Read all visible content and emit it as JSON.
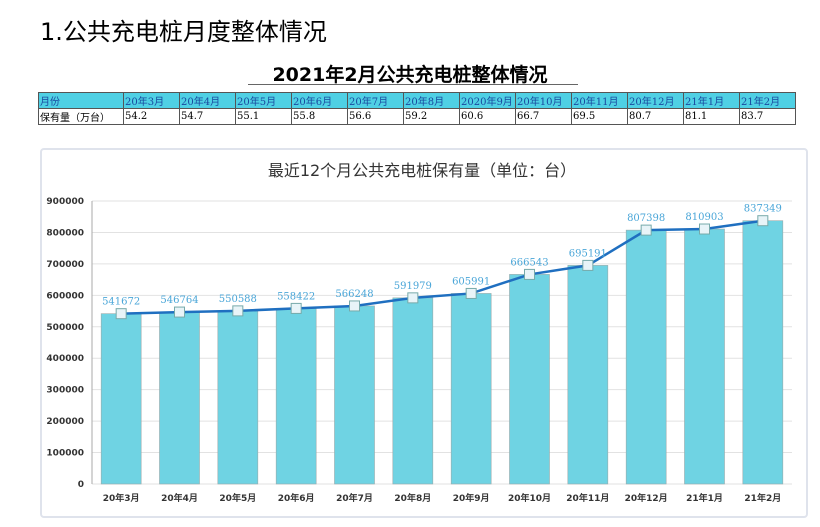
{
  "heading": "1.公共充电桩月度整体情况",
  "table_title": "2021年2月公共充电桩整体情况",
  "table": {
    "row_labels": [
      "月份",
      "保有量（万台）"
    ],
    "months": [
      "20年3月",
      "20年4月",
      "20年5月",
      "20年6月",
      "20年7月",
      "20年8月",
      "2020年9月",
      "20年10月",
      "20年11月",
      "20年12月",
      "21年1月",
      "21年2月"
    ],
    "values": [
      "54.2",
      "54.7",
      "55.1",
      "55.8",
      "56.6",
      "59.2",
      "60.6",
      "66.7",
      "69.5",
      "80.7",
      "81.1",
      "83.7"
    ]
  },
  "chart_data": {
    "type": "bar+line",
    "title": "最近12个月公共充电桩保有量（单位：台）",
    "categories": [
      "20年3月",
      "20年4月",
      "20年5月",
      "20年6月",
      "20年7月",
      "20年8月",
      "20年9月",
      "20年10月",
      "20年11月",
      "20年12月",
      "21年1月",
      "21年2月"
    ],
    "values": [
      541672,
      546764,
      550588,
      558422,
      566248,
      591979,
      605991,
      666543,
      695191,
      807398,
      810903,
      837349
    ],
    "data_labels": [
      "541672",
      "546764",
      "550588",
      "558422",
      "566248",
      "591979",
      "605991",
      "666543",
      "695191",
      "807398",
      "810903",
      "837349"
    ],
    "yticks": [
      "0",
      "100000",
      "200000",
      "300000",
      "400000",
      "500000",
      "600000",
      "700000",
      "800000",
      "900000"
    ],
    "ylim": [
      0,
      900000
    ],
    "grid": true,
    "colors": {
      "bar": "#6fd3e3",
      "line": "#1f6fc0",
      "label": "#4aa6d8"
    }
  }
}
